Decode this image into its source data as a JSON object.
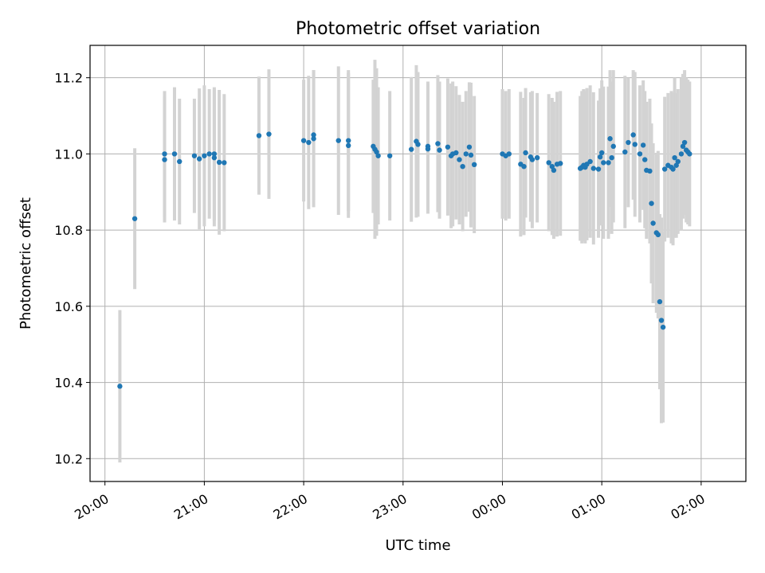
{
  "chart_data": {
    "type": "scatter",
    "title": "Photometric offset variation",
    "xlabel": "UTC time",
    "ylabel": "Photometric offset",
    "x_ticks": [
      "20:00",
      "21:00",
      "22:00",
      "23:00",
      "00:00",
      "01:00",
      "02:00"
    ],
    "y_ticks": [
      "10.2",
      "10.4",
      "10.6",
      "10.8",
      "11.0",
      "11.2"
    ],
    "xlim": [
      "19:51",
      "02:27"
    ],
    "ylim": [
      10.14,
      11.285
    ],
    "grid": true,
    "point_color": "#1f77b4",
    "errorbar_color": "#d3d3d3",
    "series": [
      {
        "x": [
          "20:09",
          "20:18",
          "20:36",
          "20:36",
          "20:42",
          "20:45",
          "20:54",
          "20:57",
          "21:00",
          "21:03",
          "21:06",
          "21:06",
          "21:09",
          "21:12",
          "21:33",
          "21:39",
          "22:00",
          "22:03",
          "22:06",
          "22:06",
          "22:21",
          "22:27",
          "22:27",
          "22:42",
          "22:43",
          "22:44",
          "22:45",
          "22:52",
          "23:05",
          "23:08",
          "23:09",
          "23:15",
          "23:15",
          "23:21",
          "23:22",
          "23:27",
          "23:29",
          "23:30",
          "23:32",
          "23:34",
          "23:36",
          "23:38",
          "23:40",
          "23:41",
          "23:43",
          "00:00",
          "00:02",
          "00:04",
          "00:11",
          "00:13",
          "00:14",
          "00:17",
          "00:18",
          "00:21",
          "00:28",
          "00:30",
          "00:31",
          "00:33",
          "00:35",
          "00:47",
          "00:48",
          "00:49",
          "00:50",
          "00:51",
          "00:53",
          "00:55",
          "00:58",
          "00:59",
          "01:00",
          "01:01",
          "01:04",
          "01:05",
          "01:06",
          "01:07",
          "01:14",
          "01:16",
          "01:19",
          "01:20",
          "01:23",
          "01:25",
          "01:26",
          "01:27",
          "01:29",
          "01:30",
          "01:31",
          "01:33",
          "01:34",
          "01:35",
          "01:36",
          "01:37",
          "01:38",
          "01:40",
          "01:42",
          "01:43",
          "01:44",
          "01:45",
          "01:46",
          "01:48",
          "01:49",
          "01:50",
          "01:51",
          "01:52",
          "01:53"
        ],
        "y": [
          10.39,
          10.83,
          11.0,
          10.985,
          11.0,
          10.98,
          10.995,
          10.987,
          10.995,
          11.0,
          11.0,
          10.99,
          10.978,
          10.977,
          11.048,
          11.052,
          11.035,
          11.03,
          11.05,
          11.04,
          11.035,
          11.035,
          11.022,
          11.02,
          11.012,
          11.005,
          10.995,
          10.995,
          11.012,
          11.033,
          11.025,
          11.02,
          11.013,
          11.027,
          11.01,
          11.018,
          10.995,
          11.0,
          11.003,
          10.985,
          10.967,
          11.0,
          11.018,
          10.997,
          10.972,
          11.0,
          10.995,
          11.0,
          10.973,
          10.967,
          11.003,
          10.992,
          10.985,
          10.99,
          10.977,
          10.967,
          10.957,
          10.973,
          10.975,
          10.962,
          10.965,
          10.97,
          10.965,
          10.973,
          10.98,
          10.962,
          10.96,
          10.992,
          11.003,
          10.977,
          10.977,
          11.04,
          10.99,
          11.02,
          11.005,
          11.03,
          11.05,
          11.025,
          11.0,
          11.023,
          10.985,
          10.957,
          10.955,
          10.87,
          10.818,
          10.793,
          10.788,
          10.612,
          10.563,
          10.545,
          10.96,
          10.97,
          10.965,
          10.96,
          10.99,
          10.97,
          10.98,
          11.0,
          11.02,
          11.03,
          11.01,
          11.005,
          11.0
        ],
        "yerr": [
          0.2,
          0.185,
          0.165,
          0.165,
          0.175,
          0.165,
          0.15,
          0.185,
          0.185,
          0.17,
          0.175,
          0.18,
          0.19,
          0.18,
          0.155,
          0.17,
          0.16,
          0.175,
          0.17,
          0.18,
          0.195,
          0.185,
          0.19,
          0.175,
          0.235,
          0.22,
          0.18,
          0.17,
          0.19,
          0.2,
          0.19,
          0.17,
          0.17,
          0.18,
          0.18,
          0.18,
          0.19,
          0.19,
          0.175,
          0.17,
          0.17,
          0.165,
          0.17,
          0.19,
          0.18,
          0.17,
          0.17,
          0.17,
          0.19,
          0.18,
          0.17,
          0.17,
          0.18,
          0.17,
          0.18,
          0.18,
          0.18,
          0.19,
          0.19,
          0.19,
          0.2,
          0.2,
          0.2,
          0.2,
          0.2,
          0.2,
          0.18,
          0.18,
          0.19,
          0.2,
          0.2,
          0.18,
          0.2,
          0.2,
          0.2,
          0.17,
          0.17,
          0.19,
          0.18,
          0.17,
          0.18,
          0.18,
          0.19,
          0.21,
          0.21,
          0.21,
          0.22,
          0.23,
          0.27,
          0.25,
          0.19,
          0.19,
          0.2,
          0.2,
          0.21,
          0.19,
          0.19,
          0.2,
          0.19,
          0.19,
          0.19,
          0.19,
          0.19
        ]
      }
    ]
  }
}
